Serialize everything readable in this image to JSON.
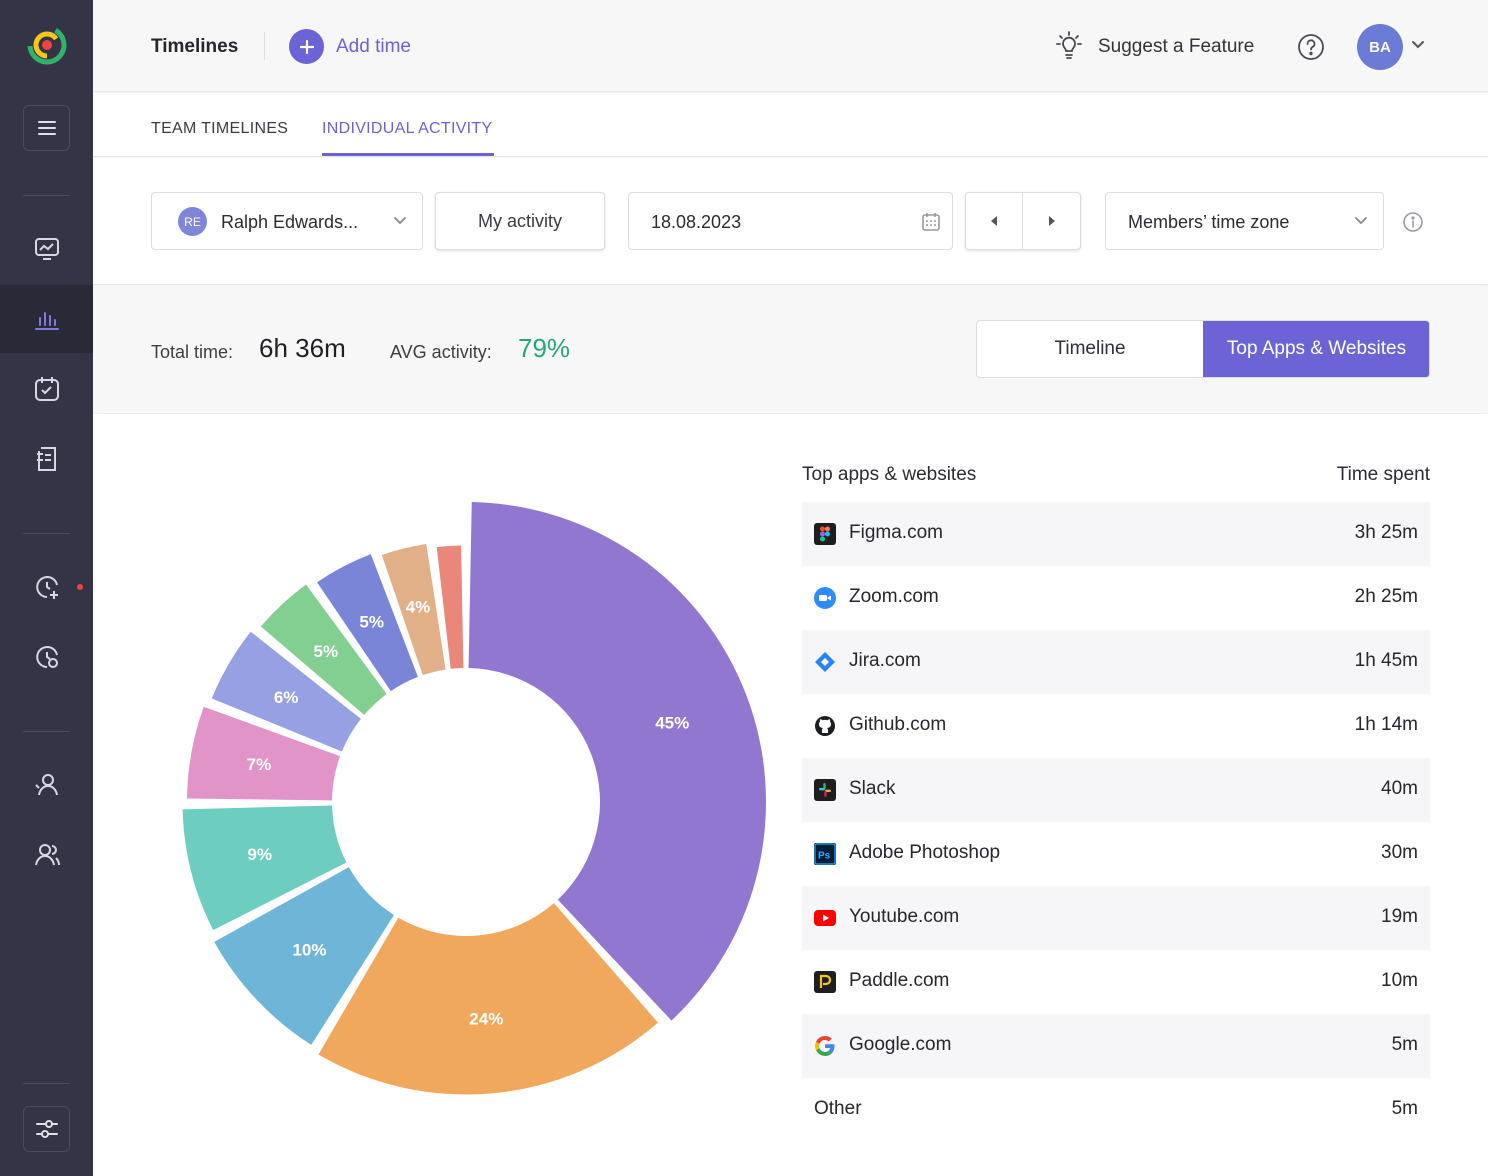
{
  "header": {
    "title": "Timelines",
    "add_time": "Add time",
    "suggest": "Suggest a Feature",
    "avatar": "BA"
  },
  "tabs": {
    "team": "TEAM TIMELINES",
    "individual": "INDIVIDUAL ACTIVITY"
  },
  "filters": {
    "member_initials": "RE",
    "member_name": "Ralph Edwards...",
    "my_activity": "My activity",
    "date": "18.08.2023",
    "timezone": "Members’ time zone"
  },
  "summary": {
    "total_label": "Total time:",
    "total_value": "6h 36m",
    "avg_label": "AVG activity:",
    "avg_value": "79%",
    "view_timeline": "Timeline",
    "view_top": "Top Apps & Websites"
  },
  "list": {
    "head_left": "Top apps & websites",
    "head_right": "Time spent",
    "rows": [
      {
        "name": "Figma.com",
        "time": "3h 25m",
        "icon": "figma-icon"
      },
      {
        "name": "Zoom.com",
        "time": "2h 25m",
        "icon": "zoom-icon"
      },
      {
        "name": "Jira.com",
        "time": "1h 45m",
        "icon": "jira-icon"
      },
      {
        "name": "Github.com",
        "time": "1h 14m",
        "icon": "github-icon"
      },
      {
        "name": "Slack",
        "time": "40m",
        "icon": "slack-icon"
      },
      {
        "name": "Adobe Photoshop",
        "time": "30m",
        "icon": "photoshop-icon"
      },
      {
        "name": "Youtube.com",
        "time": "19m",
        "icon": "youtube-icon"
      },
      {
        "name": "Paddle.com",
        "time": "10m",
        "icon": "paddle-icon"
      },
      {
        "name": "Google.com",
        "time": "5m",
        "icon": "google-icon"
      },
      {
        "name": "Other",
        "time": "5m",
        "icon": ""
      }
    ]
  },
  "chart_data": {
    "type": "pie",
    "slices": [
      {
        "label": "45%",
        "value": 45,
        "color": "#9177d0"
      },
      {
        "label": "24%",
        "value": 24,
        "color": "#f0a85c"
      },
      {
        "label": "10%",
        "value": 10,
        "color": "#6fb5d8"
      },
      {
        "label": "9%",
        "value": 9,
        "color": "#6ccdc0"
      },
      {
        "label": "7%",
        "value": 7,
        "color": "#e094c7"
      },
      {
        "label": "6%",
        "value": 6,
        "color": "#97a0e3"
      },
      {
        "label": "5%",
        "value": 5,
        "color": "#83cf91"
      },
      {
        "label": "5%",
        "value": 5,
        "color": "#7b85d7"
      },
      {
        "label": "4%",
        "value": 4,
        "color": "#e1b088"
      },
      {
        "label": "",
        "value": 2.5,
        "color": "#e8877a"
      }
    ]
  },
  "colors": {
    "accent": "#6b63d6",
    "sidebar": "#353446",
    "positive": "#26a67a"
  }
}
